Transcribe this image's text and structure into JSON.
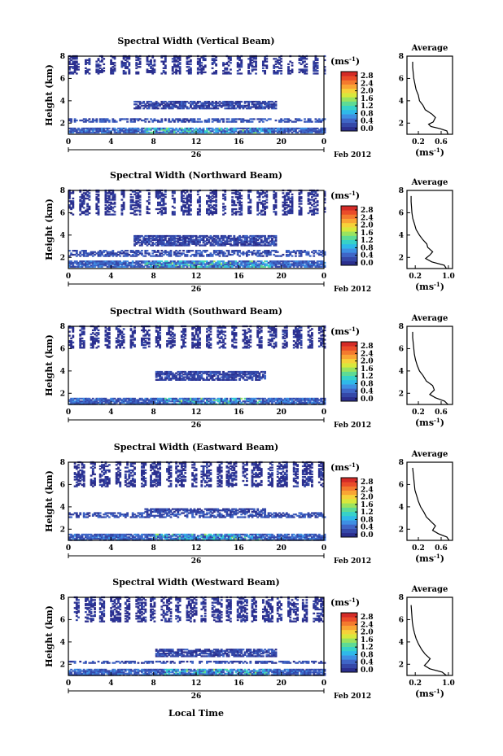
{
  "figure": {
    "xlabel": "Local Time",
    "date_label": "26",
    "month_label": "Feb 2012",
    "unit_label": "(ms",
    "unit_exp": "-1",
    "avg_title": "Average",
    "ylabel": "Height (km)"
  },
  "colorbar": {
    "ticks": [
      "2.8",
      "2.4",
      "2.0",
      "1.6",
      "1.2",
      "0.8",
      "0.4",
      "0.0"
    ],
    "colors": [
      "#2b2f8e",
      "#3548a8",
      "#3f66c7",
      "#3e8fe3",
      "#2fb9e9",
      "#37d2c8",
      "#5edb95",
      "#9ae35f",
      "#d8e83c",
      "#f6d23a",
      "#f9a534",
      "#f37a2e",
      "#ea4c2a",
      "#d42b27"
    ]
  },
  "chart_data": [
    {
      "type": "heatmap",
      "title": "Spectral Width (Vertical Beam)",
      "x_ticks": [
        "0",
        "4",
        "8",
        "12",
        "16",
        "20",
        "0"
      ],
      "xlim": [
        0,
        24
      ],
      "y_ticks": [
        "2",
        "4",
        "6",
        "8"
      ],
      "ylim": [
        1,
        8
      ],
      "colorbar_range": [
        0.0,
        2.8
      ],
      "average_profile": {
        "x_ticks": [
          "0.2",
          "0.6"
        ],
        "xlim": [
          0.0,
          0.8
        ],
        "y_ticks": [
          "2",
          "4",
          "6",
          "8"
        ],
        "ylim": [
          1,
          8
        ],
        "points": [
          [
            0.72,
            1.0
          ],
          [
            0.7,
            1.3
          ],
          [
            0.58,
            1.5
          ],
          [
            0.42,
            1.7
          ],
          [
            0.38,
            1.9
          ],
          [
            0.46,
            2.1
          ],
          [
            0.5,
            2.5
          ],
          [
            0.44,
            2.8
          ],
          [
            0.32,
            3.2
          ],
          [
            0.28,
            3.6
          ],
          [
            0.22,
            4.0
          ],
          [
            0.2,
            4.5
          ],
          [
            0.16,
            5.0
          ],
          [
            0.14,
            5.5
          ],
          [
            0.12,
            6.0
          ],
          [
            0.11,
            6.5
          ],
          [
            0.1,
            7.0
          ],
          [
            0.1,
            7.5
          ]
        ]
      }
    },
    {
      "type": "heatmap",
      "title": "Spectral Width (Northward Beam)",
      "x_ticks": [
        "0",
        "4",
        "8",
        "12",
        "16",
        "20",
        "0"
      ],
      "xlim": [
        0,
        24
      ],
      "y_ticks": [
        "2",
        "4",
        "6",
        "8"
      ],
      "ylim": [
        1,
        8
      ],
      "colorbar_range": [
        0.0,
        2.8
      ],
      "average_profile": {
        "x_ticks": [
          "0.2",
          "1.0"
        ],
        "xlim": [
          0.0,
          1.1
        ],
        "y_ticks": [
          "2",
          "4",
          "6",
          "8"
        ],
        "ylim": [
          1,
          8
        ],
        "points": [
          [
            0.95,
            1.0
          ],
          [
            0.9,
            1.3
          ],
          [
            0.6,
            1.6
          ],
          [
            0.45,
            1.9
          ],
          [
            0.55,
            2.2
          ],
          [
            0.62,
            2.5
          ],
          [
            0.5,
            2.9
          ],
          [
            0.48,
            3.2
          ],
          [
            0.38,
            3.6
          ],
          [
            0.3,
            4.0
          ],
          [
            0.22,
            4.5
          ],
          [
            0.18,
            5.0
          ],
          [
            0.14,
            5.5
          ],
          [
            0.12,
            6.0
          ],
          [
            0.11,
            6.5
          ],
          [
            0.1,
            7.0
          ],
          [
            0.1,
            7.5
          ]
        ]
      }
    },
    {
      "type": "heatmap",
      "title": "Spectral Width (Southward Beam)",
      "x_ticks": [
        "0",
        "4",
        "8",
        "12",
        "16",
        "20",
        "0"
      ],
      "xlim": [
        0,
        24
      ],
      "y_ticks": [
        "2",
        "4",
        "6",
        "8"
      ],
      "ylim": [
        1,
        8
      ],
      "colorbar_range": [
        0.0,
        2.8
      ],
      "average_profile": {
        "x_ticks": [
          "0.2",
          "0.6"
        ],
        "xlim": [
          0.0,
          0.8
        ],
        "y_ticks": [
          "2",
          "4",
          "6",
          "8"
        ],
        "ylim": [
          1,
          8
        ],
        "points": [
          [
            0.72,
            1.0
          ],
          [
            0.66,
            1.3
          ],
          [
            0.5,
            1.6
          ],
          [
            0.4,
            1.9
          ],
          [
            0.48,
            2.3
          ],
          [
            0.45,
            2.7
          ],
          [
            0.34,
            3.1
          ],
          [
            0.28,
            3.6
          ],
          [
            0.22,
            4.0
          ],
          [
            0.18,
            4.5
          ],
          [
            0.15,
            5.0
          ],
          [
            0.13,
            5.5
          ],
          [
            0.12,
            6.0
          ],
          [
            0.11,
            6.5
          ],
          [
            0.1,
            7.0
          ],
          [
            0.1,
            7.5
          ]
        ]
      }
    },
    {
      "type": "heatmap",
      "title": "Spectral Width (Eastward Beam)",
      "x_ticks": [
        "0",
        "4",
        "8",
        "12",
        "16",
        "20",
        "0"
      ],
      "xlim": [
        0,
        24
      ],
      "y_ticks": [
        "2",
        "4",
        "6",
        "8"
      ],
      "ylim": [
        1,
        8
      ],
      "colorbar_range": [
        0.0,
        2.8
      ],
      "average_profile": {
        "x_ticks": [
          "0.2",
          "0.6"
        ],
        "xlim": [
          0.0,
          0.8
        ],
        "y_ticks": [
          "2",
          "4",
          "6",
          "8"
        ],
        "ylim": [
          1,
          8
        ],
        "points": [
          [
            0.74,
            1.0
          ],
          [
            0.7,
            1.3
          ],
          [
            0.55,
            1.6
          ],
          [
            0.45,
            1.9
          ],
          [
            0.5,
            2.3
          ],
          [
            0.42,
            2.7
          ],
          [
            0.34,
            3.1
          ],
          [
            0.3,
            3.5
          ],
          [
            0.24,
            4.0
          ],
          [
            0.2,
            4.5
          ],
          [
            0.17,
            5.0
          ],
          [
            0.14,
            5.5
          ],
          [
            0.13,
            6.0
          ],
          [
            0.12,
            6.5
          ],
          [
            0.11,
            7.0
          ],
          [
            0.1,
            7.5
          ]
        ]
      }
    },
    {
      "type": "heatmap",
      "title": "Spectral Width (Westward Beam)",
      "x_ticks": [
        "0",
        "4",
        "8",
        "12",
        "16",
        "20",
        "0"
      ],
      "xlim": [
        0,
        24
      ],
      "y_ticks": [
        "2",
        "4",
        "6",
        "8"
      ],
      "ylim": [
        1,
        8
      ],
      "colorbar_range": [
        0.0,
        2.8
      ],
      "average_profile": {
        "x_ticks": [
          "0.2",
          "1.0"
        ],
        "xlim": [
          0.0,
          1.1
        ],
        "y_ticks": [
          "2",
          "4",
          "6",
          "8"
        ],
        "ylim": [
          1,
          8
        ],
        "points": [
          [
            0.95,
            1.0
          ],
          [
            0.85,
            1.3
          ],
          [
            0.55,
            1.6
          ],
          [
            0.42,
            1.9
          ],
          [
            0.5,
            2.2
          ],
          [
            0.56,
            2.5
          ],
          [
            0.44,
            2.9
          ],
          [
            0.36,
            3.3
          ],
          [
            0.28,
            3.8
          ],
          [
            0.22,
            4.3
          ],
          [
            0.18,
            4.8
          ],
          [
            0.15,
            5.3
          ],
          [
            0.13,
            5.8
          ],
          [
            0.12,
            6.3
          ],
          [
            0.11,
            6.8
          ],
          [
            0.1,
            7.3
          ]
        ]
      }
    }
  ]
}
